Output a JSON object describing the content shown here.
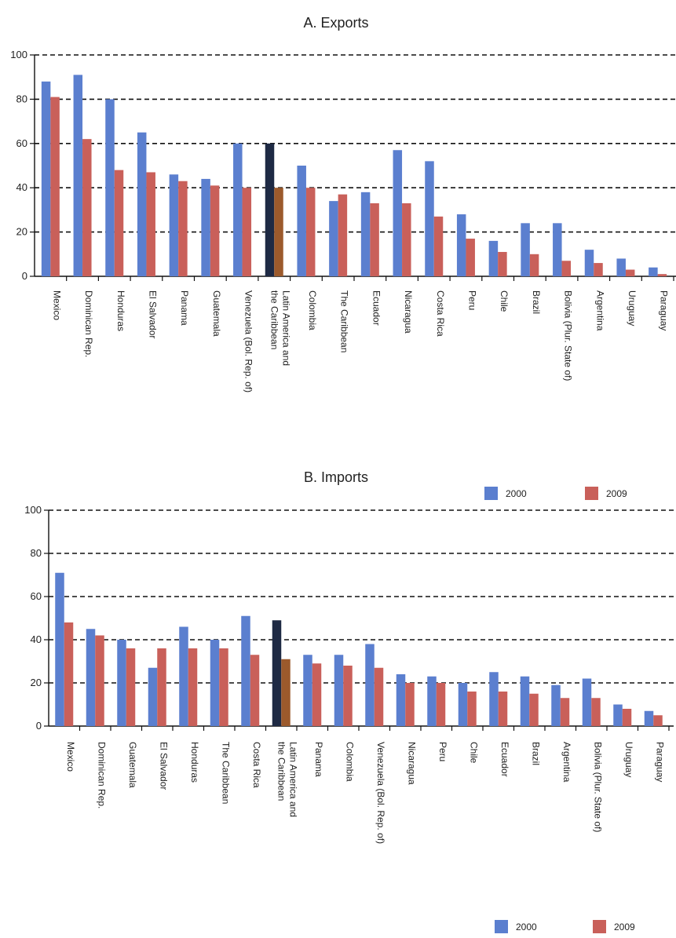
{
  "chart_data": [
    {
      "type": "bar",
      "title": "A. Exports",
      "ylim": [
        0,
        100
      ],
      "yticks": [
        0,
        20,
        40,
        60,
        80,
        100
      ],
      "grid": true,
      "categories": [
        "Mexico",
        "Dominican Rep.",
        "Honduras",
        "El Salvador",
        "Panama",
        "Guatemala",
        "Venezuela (Bol. Rep. of)",
        "Latin America and the Caribbean",
        "Colombia",
        "The Caribbean",
        "Ecuador",
        "Nicaragua",
        "Costa Rica",
        "Peru",
        "Chile",
        "Brazil",
        "Bolivia (Plur. State of)",
        "Argentina",
        "Uruguay",
        "Paraguay"
      ],
      "highlight_index": 7,
      "series": [
        {
          "name": "2000",
          "color": "#5b7fcf",
          "highlight_color": "#1e2a44",
          "values": [
            88,
            91,
            80,
            65,
            46,
            44,
            60,
            60,
            50,
            34,
            38,
            57,
            52,
            28,
            16,
            24,
            24,
            12,
            8,
            4
          ]
        },
        {
          "name": "2009",
          "color": "#c9605a",
          "highlight_color": "#9c5a2c",
          "values": [
            81,
            62,
            48,
            47,
            43,
            41,
            40,
            40,
            40,
            37,
            33,
            33,
            27,
            17,
            11,
            10,
            7,
            6,
            3,
            1
          ]
        }
      ]
    },
    {
      "type": "bar",
      "title": "B. Imports",
      "ylim": [
        0,
        100
      ],
      "yticks": [
        0,
        20,
        40,
        60,
        80,
        100
      ],
      "grid": true,
      "legend_position": "top-right",
      "categories": [
        "Mexico",
        "Dominican Rep.",
        "Guatemala",
        "El Salvador",
        "Honduras",
        "The Caribbean",
        "Costa Rica",
        "Latin America and the Caribbean",
        "Panama",
        "Colombia",
        "Venezuela (Bol. Rep. of)",
        "Nicaragua",
        "Peru",
        "Chile",
        "Ecuador",
        "Brazil",
        "Argentina",
        "Bolivia (Plur. State of)",
        "Uruguay",
        "Paraguay"
      ],
      "highlight_index": 7,
      "series": [
        {
          "name": "2000",
          "color": "#5b7fcf",
          "highlight_color": "#1e2a44",
          "values": [
            71,
            45,
            40,
            27,
            46,
            40,
            51,
            49,
            33,
            33,
            38,
            24,
            23,
            20,
            25,
            23,
            19,
            22,
            10,
            7
          ]
        },
        {
          "name": "2009",
          "color": "#c9605a",
          "highlight_color": "#9c5a2c",
          "values": [
            48,
            42,
            36,
            36,
            36,
            36,
            33,
            31,
            29,
            28,
            27,
            20,
            20,
            16,
            16,
            15,
            13,
            13,
            8,
            5
          ]
        }
      ]
    }
  ],
  "legends": [
    {
      "items": [
        {
          "label": "2000",
          "color": "#5b7fcf"
        },
        {
          "label": "2009",
          "color": "#c9605a"
        }
      ]
    },
    {
      "items": [
        {
          "label": "2000",
          "color": "#5b7fcf"
        },
        {
          "label": "2009",
          "color": "#c9605a"
        }
      ]
    }
  ]
}
